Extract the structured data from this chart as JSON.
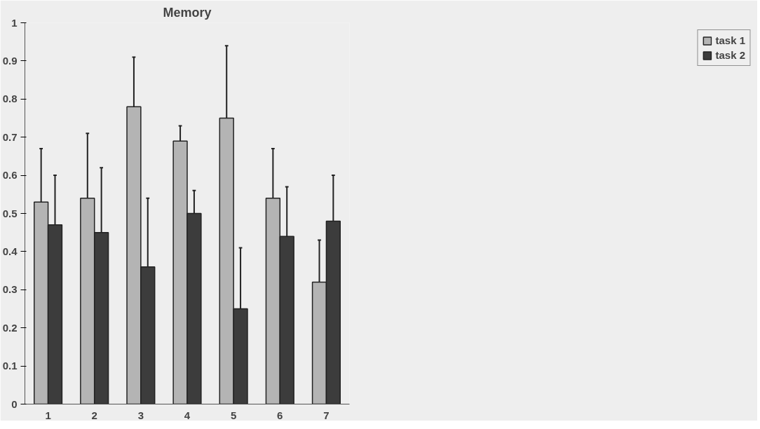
{
  "chart_data": {
    "type": "bar",
    "title": "Memory",
    "categories": [
      "1",
      "2",
      "3",
      "4",
      "5",
      "6",
      "7"
    ],
    "series": [
      {
        "name": "task 1",
        "color": "#b4b4b4",
        "values": [
          0.53,
          0.54,
          0.78,
          0.69,
          0.75,
          0.54,
          0.32
        ],
        "errors": [
          [
            0.53,
            0.67
          ],
          [
            0.54,
            0.71
          ],
          [
            0.78,
            0.91
          ],
          [
            0.69,
            0.73
          ],
          [
            0.75,
            0.94
          ],
          [
            0.54,
            0.67
          ],
          [
            0.32,
            0.43
          ]
        ]
      },
      {
        "name": "task 2",
        "color": "#3c3c3c",
        "values": [
          0.47,
          0.45,
          0.36,
          0.5,
          0.25,
          0.44,
          0.48
        ],
        "errors": [
          [
            0.47,
            0.6
          ],
          [
            0.45,
            0.62
          ],
          [
            0.36,
            0.54
          ],
          [
            0.5,
            0.56
          ],
          [
            0.25,
            0.41
          ],
          [
            0.44,
            0.57
          ],
          [
            0.48,
            0.6
          ]
        ]
      }
    ],
    "ylim": [
      0,
      1
    ],
    "yticks": [
      0,
      0.1,
      0.2,
      0.3,
      0.4,
      0.5,
      0.6,
      0.7,
      0.8,
      0.9,
      1
    ],
    "grid": false,
    "legend": "right"
  }
}
